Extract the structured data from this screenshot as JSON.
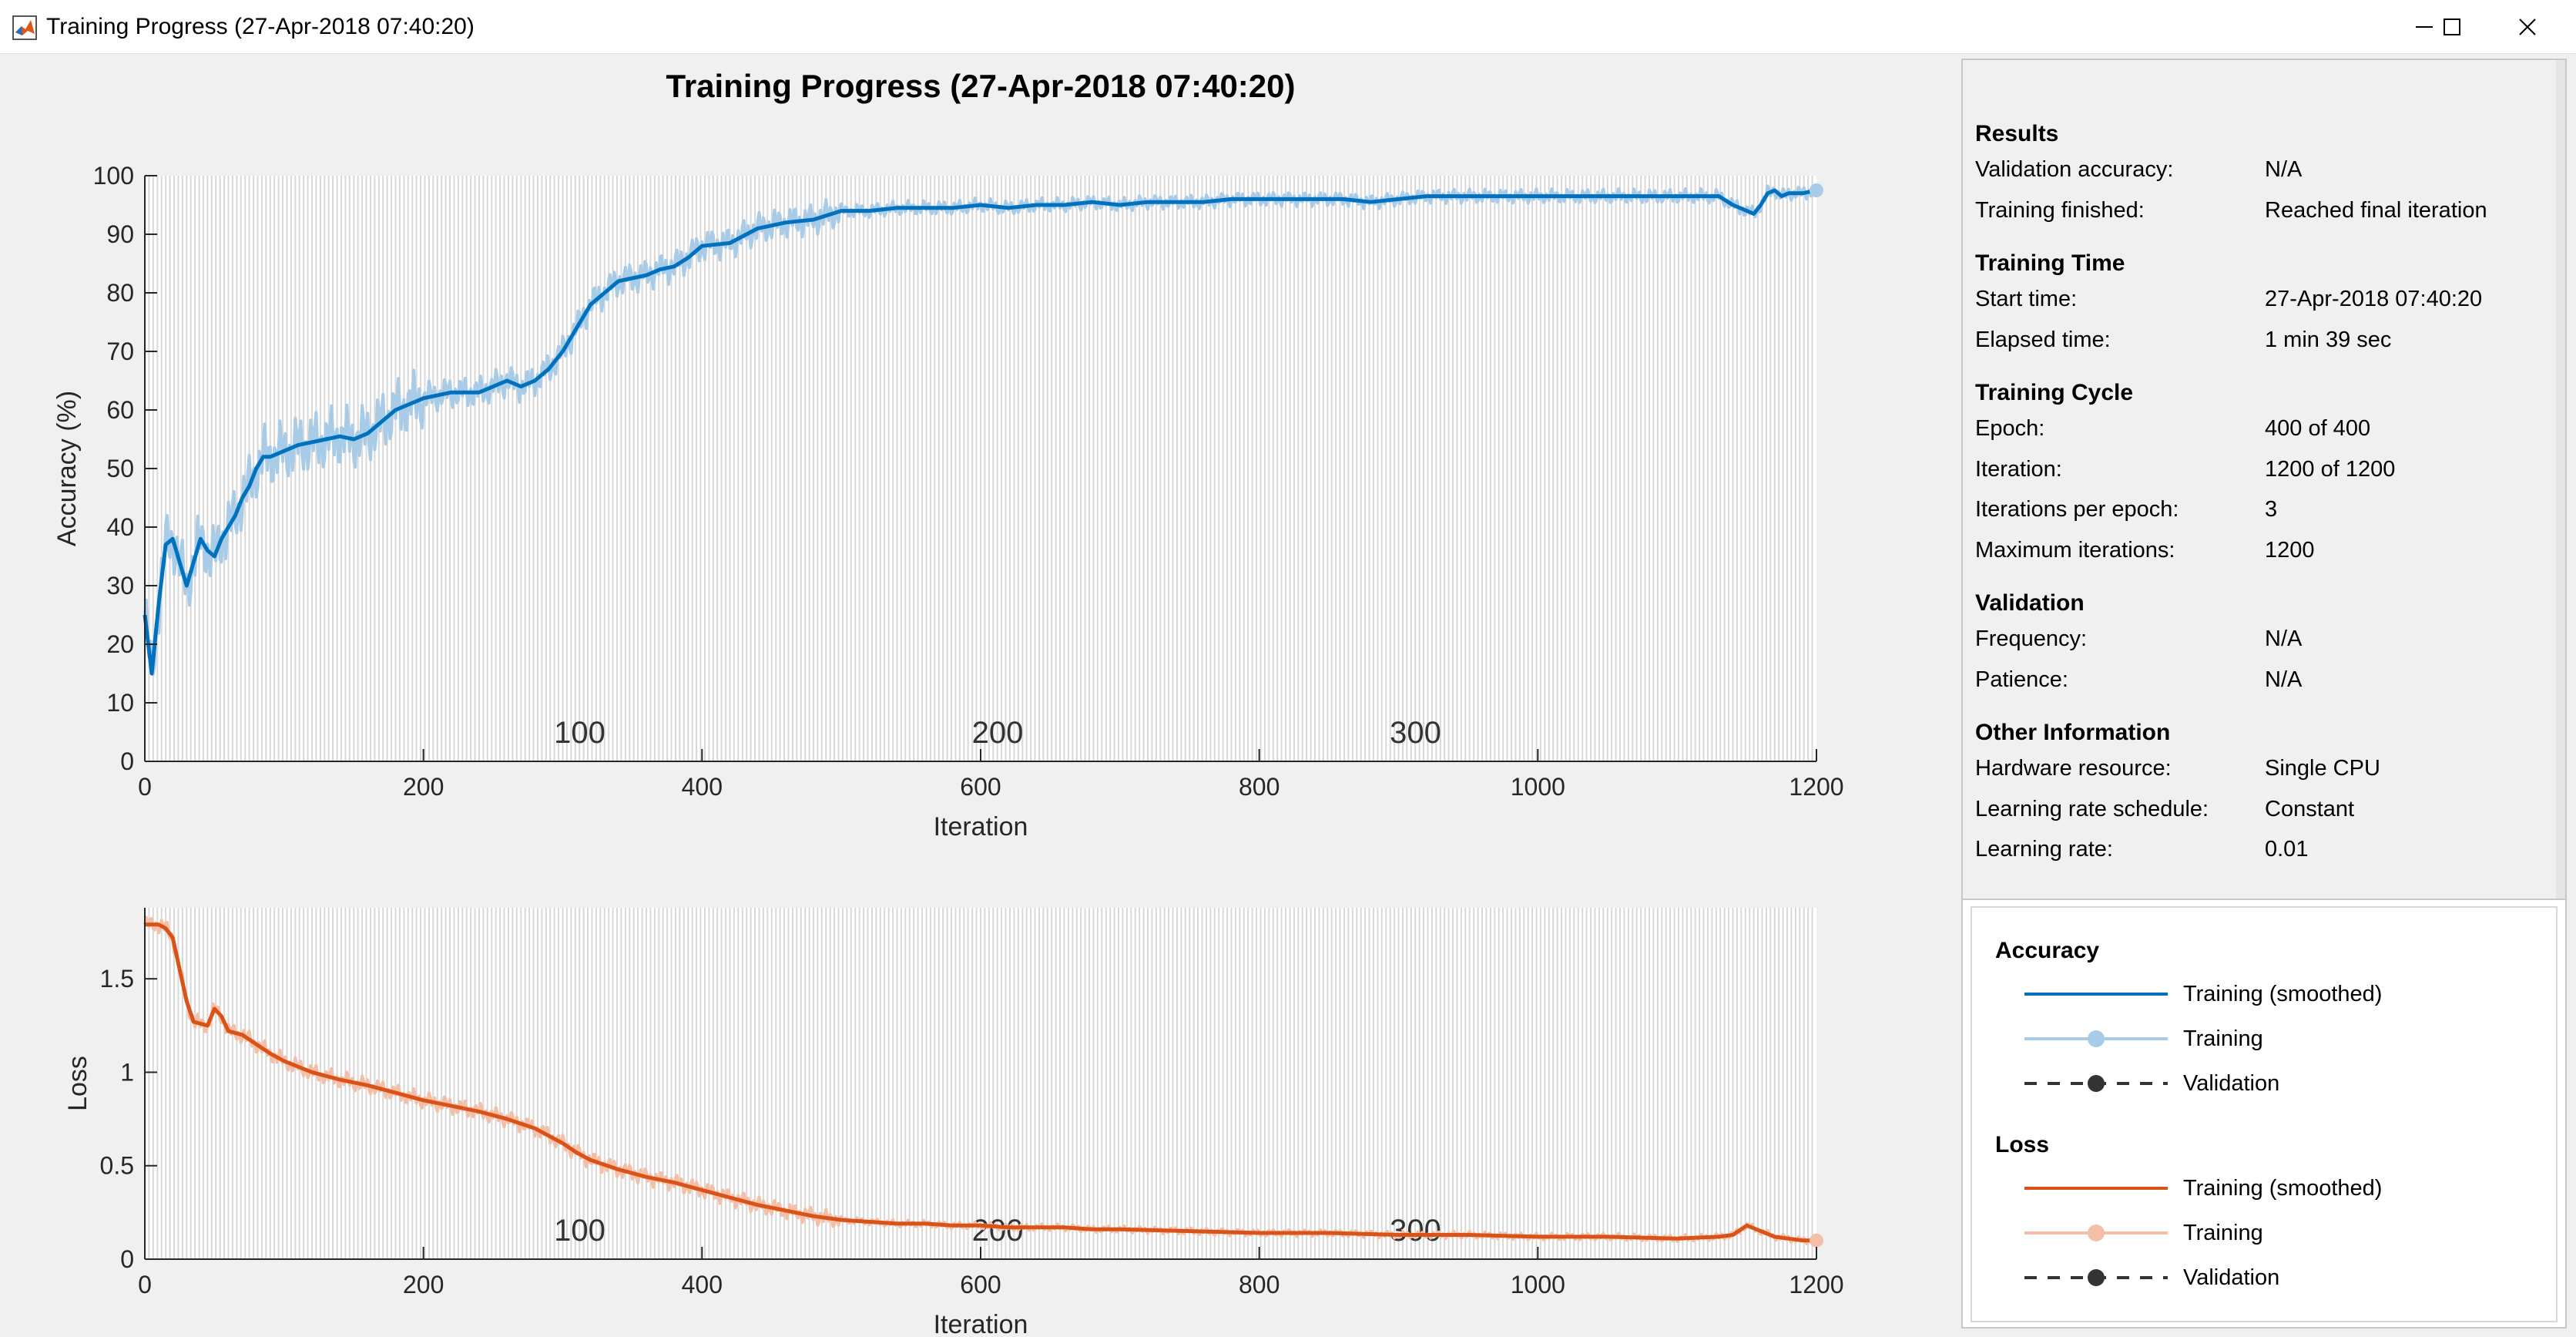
{
  "window": {
    "title": "Training Progress (27-Apr-2018 07:40:20)",
    "app_icon": "matlab-icon",
    "controls": [
      "minimize-icon",
      "maximize-icon",
      "close-icon"
    ]
  },
  "figure_title": "Training Progress (27-Apr-2018 07:40:20)",
  "info_panel": {
    "sections": [
      {
        "heading": "Results",
        "rows": [
          {
            "label": "Validation accuracy:",
            "value": "N/A"
          },
          {
            "label": "Training finished:",
            "value": "Reached final iteration"
          }
        ]
      },
      {
        "heading": "Training Time",
        "rows": [
          {
            "label": "Start time:",
            "value": "27-Apr-2018 07:40:20"
          },
          {
            "label": "Elapsed time:",
            "value": "1 min 39 sec"
          }
        ]
      },
      {
        "heading": "Training Cycle",
        "rows": [
          {
            "label": "Epoch:",
            "value": "400 of 400"
          },
          {
            "label": "Iteration:",
            "value": "1200 of 1200"
          },
          {
            "label": "Iterations per epoch:",
            "value": "3"
          },
          {
            "label": "Maximum iterations:",
            "value": "1200"
          }
        ]
      },
      {
        "heading": "Validation",
        "rows": [
          {
            "label": "Frequency:",
            "value": "N/A"
          },
          {
            "label": "Patience:",
            "value": "N/A"
          }
        ]
      },
      {
        "heading": "Other Information",
        "rows": [
          {
            "label": "Hardware resource:",
            "value": "Single CPU"
          },
          {
            "label": "Learning rate schedule:",
            "value": "Constant"
          },
          {
            "label": "Learning rate:",
            "value": "0.01"
          }
        ]
      }
    ]
  },
  "legend": {
    "groups": [
      {
        "heading": "Accuracy",
        "items": [
          {
            "label": "Training (smoothed)",
            "style": "solid",
            "color": "#0072bd",
            "marker": false
          },
          {
            "label": "Training",
            "style": "solid",
            "color": "#a8cbe8",
            "marker": true
          },
          {
            "label": "Validation",
            "style": "dashed",
            "color": "#333333",
            "marker": true
          }
        ]
      },
      {
        "heading": "Loss",
        "items": [
          {
            "label": "Training (smoothed)",
            "style": "solid",
            "color": "#d95319",
            "marker": false
          },
          {
            "label": "Training",
            "style": "solid",
            "color": "#f4bfa6",
            "marker": true
          },
          {
            "label": "Validation",
            "style": "dashed",
            "color": "#333333",
            "marker": true
          }
        ]
      }
    ]
  },
  "chart_data": [
    {
      "type": "line",
      "xlabel": "Iteration",
      "ylabel": "Accuracy (%)",
      "xlim": [
        0,
        1200
      ],
      "ylim": [
        0,
        100
      ],
      "xticks": [
        0,
        200,
        400,
        600,
        800,
        1000,
        1200
      ],
      "yticks": [
        0,
        10,
        20,
        30,
        40,
        50,
        60,
        70,
        80,
        90,
        100
      ],
      "epoch_labels": [
        {
          "iteration": 300,
          "label": "100"
        },
        {
          "iteration": 600,
          "label": "200"
        },
        {
          "iteration": 900,
          "label": "300"
        }
      ],
      "epoch_gridlines": "every 3 iterations",
      "series": [
        {
          "name": "Training (smoothed)",
          "color": "#0072bd",
          "x": [
            0,
            5,
            10,
            15,
            20,
            25,
            30,
            35,
            40,
            45,
            50,
            55,
            60,
            65,
            70,
            75,
            80,
            85,
            90,
            100,
            110,
            120,
            130,
            140,
            150,
            160,
            170,
            180,
            190,
            200,
            220,
            240,
            250,
            260,
            270,
            280,
            290,
            300,
            310,
            320,
            330,
            340,
            350,
            360,
            370,
            380,
            390,
            400,
            420,
            440,
            460,
            480,
            500,
            520,
            540,
            560,
            580,
            600,
            620,
            640,
            660,
            680,
            700,
            720,
            740,
            760,
            780,
            800,
            820,
            840,
            860,
            880,
            900,
            920,
            940,
            960,
            980,
            1000,
            1020,
            1040,
            1060,
            1080,
            1100,
            1120,
            1130,
            1140,
            1150,
            1155,
            1160,
            1165,
            1170,
            1175,
            1180,
            1190,
            1200
          ],
          "y": [
            25,
            15,
            27,
            37,
            38,
            34,
            30,
            34,
            38,
            36,
            35,
            38,
            40,
            42,
            45,
            47,
            50,
            52,
            52,
            53,
            54,
            54.5,
            55,
            55.5,
            55,
            56,
            58,
            60,
            61,
            62,
            63,
            63,
            64,
            65,
            64,
            65,
            67,
            70,
            74,
            78,
            80,
            82,
            82.5,
            83,
            84,
            84.5,
            86,
            88,
            88.5,
            91,
            92,
            92.5,
            94,
            94,
            94.5,
            94.5,
            94.5,
            95,
            94.5,
            95,
            95,
            95.5,
            95,
            95.5,
            95.5,
            95.5,
            96,
            96,
            96,
            96,
            96,
            95.5,
            96,
            96.5,
            96.5,
            96.5,
            96.5,
            96.5,
            96.5,
            96.5,
            96.5,
            96.5,
            96.5,
            96.5,
            96.5,
            95,
            94,
            93.5,
            95,
            97,
            97.5,
            96.5,
            97,
            97,
            97.5
          ]
        },
        {
          "name": "Training",
          "color": "#a8cbe8",
          "note_band": "raw per-iteration values oscillate around smoothed curve"
        }
      ]
    },
    {
      "type": "line",
      "xlabel": "Iteration",
      "ylabel": "Loss",
      "xlim": [
        0,
        1200
      ],
      "ylim": [
        0,
        1.88
      ],
      "xticks": [
        0,
        200,
        400,
        600,
        800,
        1000,
        1200
      ],
      "yticks": [
        0,
        0.5,
        1,
        1.5
      ],
      "ytick_labels": [
        "0",
        "0.5",
        "1",
        "1.5"
      ],
      "epoch_labels": [
        {
          "iteration": 300,
          "label": "100"
        },
        {
          "iteration": 600,
          "label": "200"
        },
        {
          "iteration": 900,
          "label": "300"
        }
      ],
      "epoch_gridlines": "every 3 iterations",
      "series": [
        {
          "name": "Training (smoothed)",
          "color": "#d95319",
          "x": [
            0,
            10,
            15,
            20,
            25,
            30,
            35,
            40,
            45,
            50,
            55,
            60,
            70,
            80,
            90,
            100,
            120,
            140,
            160,
            180,
            200,
            220,
            240,
            260,
            280,
            290,
            300,
            310,
            320,
            340,
            360,
            380,
            400,
            420,
            440,
            460,
            480,
            500,
            520,
            540,
            560,
            580,
            600,
            620,
            640,
            660,
            680,
            700,
            750,
            800,
            850,
            900,
            950,
            1000,
            1050,
            1100,
            1130,
            1140,
            1150,
            1160,
            1170,
            1180,
            1190,
            1200
          ],
          "y": [
            1.79,
            1.79,
            1.77,
            1.72,
            1.55,
            1.38,
            1.27,
            1.26,
            1.25,
            1.34,
            1.3,
            1.22,
            1.2,
            1.15,
            1.1,
            1.06,
            1.0,
            0.96,
            0.93,
            0.89,
            0.85,
            0.82,
            0.79,
            0.75,
            0.7,
            0.66,
            0.62,
            0.57,
            0.53,
            0.48,
            0.44,
            0.41,
            0.37,
            0.33,
            0.29,
            0.26,
            0.23,
            0.21,
            0.2,
            0.19,
            0.19,
            0.18,
            0.18,
            0.17,
            0.17,
            0.17,
            0.16,
            0.16,
            0.15,
            0.14,
            0.14,
            0.13,
            0.13,
            0.12,
            0.12,
            0.11,
            0.12,
            0.13,
            0.18,
            0.15,
            0.12,
            0.11,
            0.1,
            0.1
          ]
        },
        {
          "name": "Training",
          "color": "#f4bfa6",
          "note_band": "raw per-iteration values oscillate around smoothed curve"
        }
      ]
    }
  ]
}
